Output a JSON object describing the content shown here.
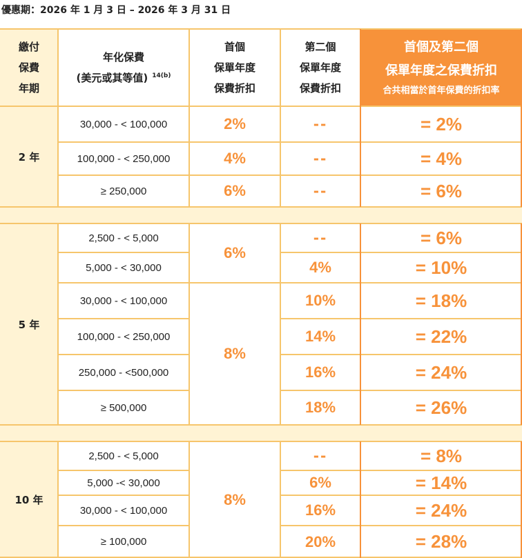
{
  "period": "優惠期：2026 年 1 月 3 日 – 2026 年 3 月 31 日",
  "header": {
    "term": [
      "繳付",
      "保費",
      "年期"
    ],
    "premium": [
      "年化保費",
      "(美元或其等值)"
    ],
    "premium_note": "14(b)",
    "first": [
      "首個",
      "保單年度",
      "保費折扣"
    ],
    "second": [
      "第二個",
      "保單年度",
      "保費折扣"
    ],
    "combined": [
      "首個及第二個",
      "保單年度之保費折扣"
    ],
    "combined_sub": "合共相當於首年保費的折扣率"
  },
  "groups": [
    {
      "term": "2 年",
      "rows": [
        {
          "range": "30,000 - < 100,000",
          "first": "2%",
          "second": "--",
          "total": "= 2%"
        },
        {
          "range": "100,000 - < 250,000",
          "first": "4%",
          "second": "--",
          "total": "= 4%"
        },
        {
          "range": "≥ 250,000",
          "first": "6%",
          "second": "--",
          "total": "= 6%"
        }
      ]
    },
    {
      "term": "5 年",
      "first_merged": [
        "6%",
        "8%"
      ],
      "rows": [
        {
          "range": "2,500 - < 5,000",
          "second": "--",
          "total": "= 6%"
        },
        {
          "range": "5,000 - < 30,000",
          "second": "4%",
          "total": "= 10%"
        },
        {
          "range": "30,000 - < 100,000",
          "second": "10%",
          "total": "= 18%"
        },
        {
          "range": "100,000 - < 250,000",
          "second": "14%",
          "total": "= 22%"
        },
        {
          "range": "250,000 - <500,000",
          "second": "16%",
          "total": "= 24%"
        },
        {
          "range": "≥ 500,000",
          "second": "18%",
          "total": "= 26%"
        }
      ]
    },
    {
      "term": "10 年",
      "first_merged": [
        "8%"
      ],
      "rows": [
        {
          "range": "2,500 - < 5,000",
          "second": "--",
          "total": "= 8%"
        },
        {
          "range": "5,000 -< 30,000",
          "second": "6%",
          "total": "= 14%"
        },
        {
          "range": "30,000 - < 100,000",
          "second": "16%",
          "total": "= 24%"
        },
        {
          "range": "≥ 100,000",
          "second": "20%",
          "total": "= 28%"
        }
      ]
    }
  ],
  "colors": {
    "accent": "#F7923A",
    "term_bg": "#FFF3D4",
    "grid": "#F6C56B"
  }
}
